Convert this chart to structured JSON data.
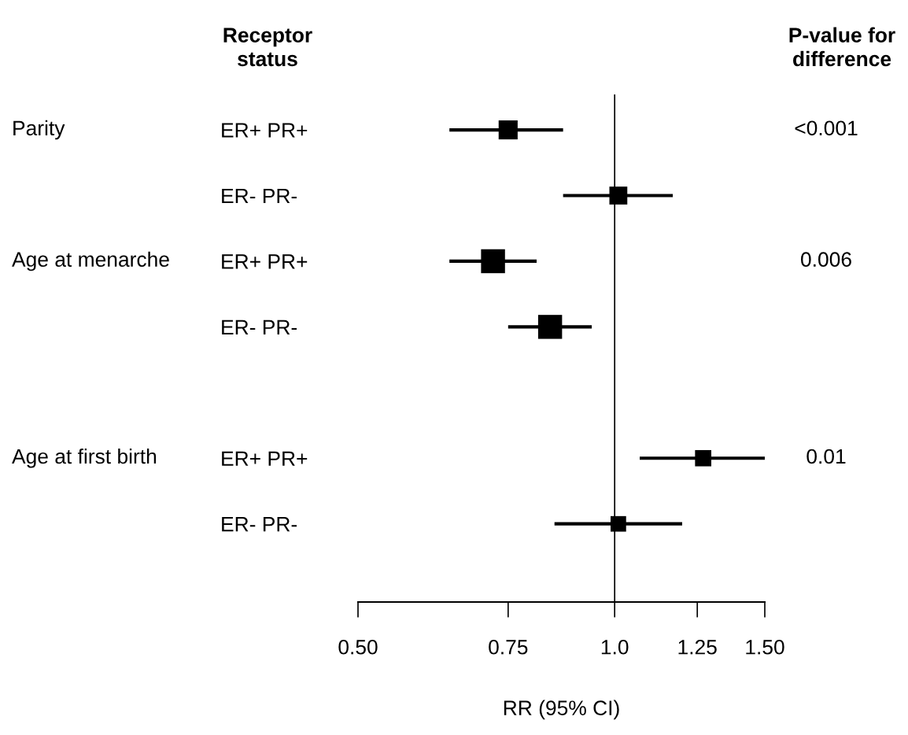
{
  "chart_data": {
    "type": "bubble",
    "orientation": "horizontal",
    "marker": "square",
    "log": "x",
    "categories": [
      "ER+ PR+",
      "ER- PR-",
      "ER+ PR+",
      "ER- PR-",
      null,
      "ER+ PR+",
      "ER- PR-"
    ],
    "values": [
      0.75,
      1.01,
      0.72,
      0.84,
      null,
      1.27,
      1.01
    ],
    "errors": [
      [
        0.64,
        0.87
      ],
      [
        0.87,
        1.17
      ],
      [
        0.64,
        0.81
      ],
      [
        0.75,
        0.94
      ],
      null,
      [
        1.07,
        1.5
      ],
      [
        0.85,
        1.2
      ]
    ],
    "sizes": [
      0.63,
      0.56,
      1,
      1,
      null,
      0.46,
      0.42
    ],
    "color": "#000000",
    "xlim": [
      0.5,
      1.5
    ],
    "xticks": [
      {
        "value": 0.5,
        "label": "0.50"
      },
      0.75,
      {
        "value": 1.0,
        "label": "1.0"
      },
      1.25,
      {
        "value": 1.5,
        "label": "1.50"
      }
    ],
    "xlabel": "RR (95% CI)",
    "ref_lines": [
      {
        "axis": "x",
        "value": 1.0,
        "color": "#000000"
      }
    ],
    "grid": false,
    "legend": false,
    "annotations": [
      "Receptor\nstatus",
      "P-value for\ndifference",
      "Parity",
      "Age at menarche",
      "Age at first birth",
      "<0.001",
      "0.006",
      "0.01"
    ]
  }
}
